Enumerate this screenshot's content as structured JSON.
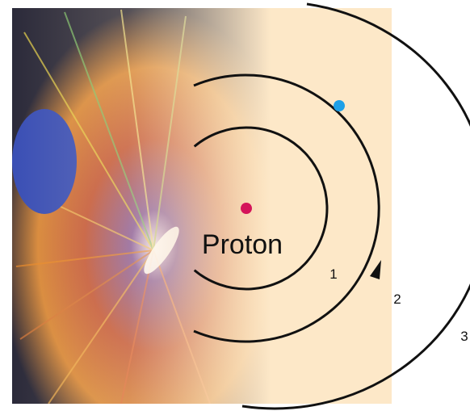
{
  "diagram": {
    "nucleus_label": "Proton",
    "orbit_labels": [
      "1",
      "2",
      "3"
    ]
  }
}
